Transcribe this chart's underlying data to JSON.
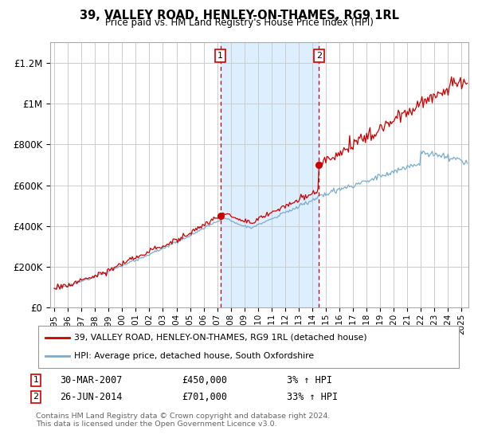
{
  "title": "39, VALLEY ROAD, HENLEY-ON-THAMES, RG9 1RL",
  "subtitle": "Price paid vs. HM Land Registry's House Price Index (HPI)",
  "ylabel_ticks": [
    "£0",
    "£200K",
    "£400K",
    "£600K",
    "£800K",
    "£1M",
    "£1.2M"
  ],
  "ytick_values": [
    0,
    200000,
    400000,
    600000,
    800000,
    1000000,
    1200000
  ],
  "ylim": [
    0,
    1300000
  ],
  "xlim_start": 1994.7,
  "xlim_end": 2025.5,
  "marker1_x": 2007.24,
  "marker1_y": 450000,
  "marker1_label": "1",
  "marker2_x": 2014.49,
  "marker2_y": 701000,
  "marker2_label": "2",
  "shade_start": 2007.24,
  "shade_end": 2014.49,
  "line1_color": "#cc0000",
  "line2_color": "#7aadcc",
  "legend_line1": "39, VALLEY ROAD, HENLEY-ON-THAMES, RG9 1RL (detached house)",
  "legend_line2": "HPI: Average price, detached house, South Oxfordshire",
  "annotation1_num": "1",
  "annotation1_date": "30-MAR-2007",
  "annotation1_price": "£450,000",
  "annotation1_hpi": "3% ↑ HPI",
  "annotation2_num": "2",
  "annotation2_date": "26-JUN-2014",
  "annotation2_price": "£701,000",
  "annotation2_hpi": "33% ↑ HPI",
  "footer": "Contains HM Land Registry data © Crown copyright and database right 2024.\nThis data is licensed under the Open Government Licence v3.0.",
  "background_color": "#ffffff",
  "grid_color": "#cccccc",
  "shade_color": "#ddeeff"
}
